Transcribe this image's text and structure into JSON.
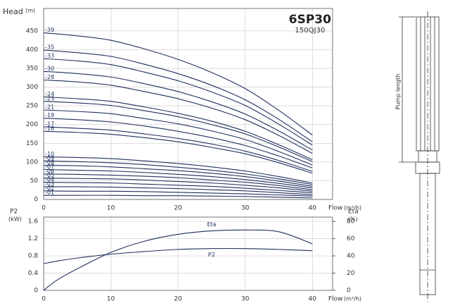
{
  "chart_data": [
    {
      "type": "line",
      "title": "6SP30",
      "subtitle": "150QJ30",
      "y_label": "Head",
      "y_unit": "(m)",
      "x_label": "Flow",
      "x_unit": "(m³/h)",
      "x": [
        0,
        5,
        10,
        15,
        20,
        25,
        30,
        35,
        40
      ],
      "xlim": [
        0,
        43
      ],
      "xticks": [
        0,
        10,
        20,
        30,
        40
      ],
      "ylim": [
        0,
        510
      ],
      "yticks": [
        0,
        50,
        100,
        150,
        200,
        250,
        300,
        350,
        400,
        450
      ],
      "grid": true,
      "series": [
        {
          "name": "-39",
          "color": "#1f2f5f",
          "values": [
            445,
            437,
            425,
            402,
            374,
            339,
            296,
            238,
            172
          ]
        },
        {
          "name": "-35",
          "color": "#1f2f5f",
          "values": [
            399,
            392,
            382,
            361,
            336,
            305,
            266,
            214,
            154
          ]
        },
        {
          "name": "-33",
          "color": "#1f2f5f",
          "values": [
            376,
            370,
            360,
            340,
            317,
            287,
            251,
            201,
            145
          ]
        },
        {
          "name": "-30",
          "color": "#1f2f5f",
          "values": [
            342,
            336,
            327,
            309,
            288,
            261,
            228,
            183,
            132
          ]
        },
        {
          "name": "-28",
          "color": "#1f2f5f",
          "values": [
            319,
            314,
            305,
            288,
            269,
            244,
            213,
            171,
            123
          ]
        },
        {
          "name": "-24",
          "color": "#1f2f5f",
          "values": [
            274,
            269,
            262,
            247,
            230,
            209,
            182,
            146,
            106
          ]
        },
        {
          "name": "-23",
          "color": "#1f2f5f",
          "values": [
            262,
            258,
            251,
            237,
            221,
            200,
            175,
            140,
            101
          ]
        },
        {
          "name": "-21",
          "color": "#1f2f5f",
          "values": [
            239,
            235,
            229,
            216,
            202,
            183,
            160,
            128,
            92
          ]
        },
        {
          "name": "-19",
          "color": "#1f2f5f",
          "values": [
            217,
            213,
            207,
            196,
            182,
            165,
            144,
            116,
            84
          ]
        },
        {
          "name": "-17",
          "color": "#1f2f5f",
          "values": [
            194,
            190,
            185,
            175,
            163,
            148,
            129,
            104,
            75
          ]
        },
        {
          "name": "-16",
          "color": "#1f2f5f",
          "values": [
            182,
            179,
            174,
            165,
            154,
            139,
            122,
            98,
            70
          ]
        },
        {
          "name": "-10",
          "color": "#1f2f5f",
          "values": [
            114,
            112,
            109,
            103,
            96,
            87,
            76,
            61,
            44
          ]
        },
        {
          "name": "-09",
          "color": "#1f2f5f",
          "values": [
            103,
            101,
            98,
            93,
            86,
            78,
            68,
            55,
            40
          ]
        },
        {
          "name": "-08",
          "color": "#1f2f5f",
          "values": [
            91,
            90,
            87,
            82,
            77,
            70,
            61,
            49,
            35
          ]
        },
        {
          "name": "-07",
          "color": "#1f2f5f",
          "values": [
            80,
            78,
            76,
            72,
            67,
            61,
            53,
            43,
            31
          ]
        },
        {
          "name": "-06",
          "color": "#1f2f5f",
          "values": [
            68,
            67,
            65,
            62,
            58,
            52,
            46,
            37,
            26
          ]
        },
        {
          "name": "-05",
          "color": "#1f2f5f",
          "values": [
            57,
            56,
            55,
            52,
            48,
            44,
            38,
            31,
            22
          ]
        },
        {
          "name": "-04",
          "color": "#1f2f5f",
          "values": [
            46,
            45,
            44,
            41,
            38,
            35,
            30,
            24,
            18
          ]
        },
        {
          "name": "-03",
          "color": "#1f2f5f",
          "values": [
            34,
            34,
            33,
            31,
            29,
            26,
            23,
            18,
            13
          ]
        },
        {
          "name": "-02",
          "color": "#1f2f5f",
          "values": [
            23,
            22,
            22,
            21,
            19,
            17,
            15,
            12,
            9
          ]
        },
        {
          "name": "-01",
          "color": "#1f2f5f",
          "values": [
            11,
            11,
            11,
            10,
            10,
            9,
            8,
            6,
            4
          ]
        }
      ]
    },
    {
      "type": "line",
      "y_label": "P2",
      "y_unit": "(kW)",
      "y2_label": "Eta",
      "y2_unit": "(%)",
      "x_label": "Flow",
      "x_unit": "(m³/h)",
      "x": [
        0,
        2,
        5,
        10,
        15,
        20,
        25,
        30,
        35,
        40
      ],
      "xlim": [
        0,
        43
      ],
      "xticks": [
        0,
        10,
        20,
        30,
        40
      ],
      "ylim": [
        0,
        1.7
      ],
      "yticks": [
        0,
        0.4,
        0.8,
        1.2,
        1.6
      ],
      "y2lim": [
        0,
        85
      ],
      "y2ticks": [
        0,
        20,
        40,
        60,
        80
      ],
      "grid": true,
      "series": [
        {
          "name": "Eta",
          "color": "#1f2f5f",
          "axis": "y2",
          "values": [
            0,
            12,
            25,
            44,
            57,
            65,
            69,
            70,
            68,
            54
          ]
        },
        {
          "name": "P2",
          "color": "#1f2f5f",
          "values": [
            0.62,
            0.68,
            0.75,
            0.84,
            0.9,
            0.95,
            0.97,
            0.97,
            0.95,
            0.92
          ]
        }
      ]
    }
  ],
  "drawing": {
    "label": "Pump length"
  }
}
